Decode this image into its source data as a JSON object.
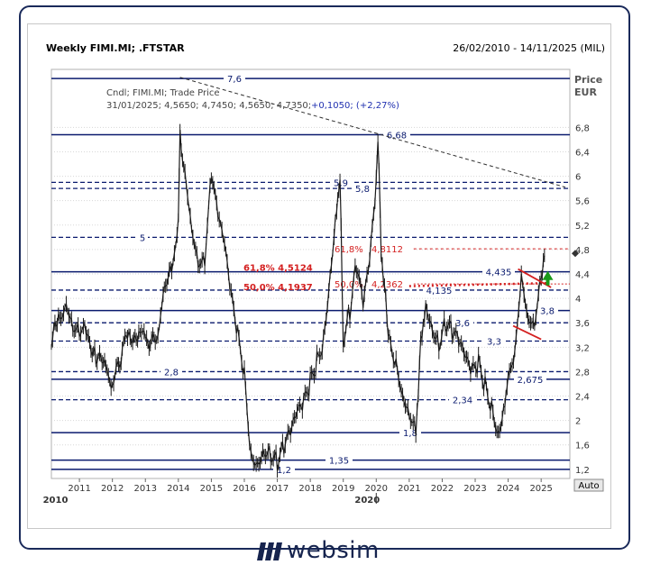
{
  "header": {
    "title": "Weekly FIMI.MI; .FTSTAR",
    "date_range": "26/02/2010 - 14/11/2025 (MIL)",
    "price_axis_label_1": "Price",
    "price_axis_label_2": "EUR",
    "auto_button": "Auto"
  },
  "info_box": {
    "line1": "Cndl; FIMI.MI; Trade Price",
    "line2_values": "31/01/2025; 4,5650; 4,7450; 4,5650; 4,7350;",
    "line2_change": "+0,1050; (+2,27%)"
  },
  "colors": {
    "price": "#1a1a1a",
    "support_line": "#0a1a6e",
    "fib_red": "#d42020",
    "trendline": "#303030",
    "up_arrow": "#1a9a1a",
    "brand": "#16244e"
  },
  "chart_data": {
    "type": "candlestick-line",
    "title": "Weekly FIMI.MI; .FTSTAR",
    "ylabel": "Price EUR",
    "ylim": [
      1.05,
      7.75
    ],
    "xlim": [
      2010.15,
      2025.87
    ],
    "y_ticks": [
      "1,2",
      "1,6",
      "2",
      "2,4",
      "2,8",
      "3,2",
      "3,6",
      "4",
      "4,4",
      "4,8",
      "5,2",
      "5,6",
      "6",
      "6,4",
      "6,8"
    ],
    "x_ticks": [
      "2011",
      "2012",
      "2013",
      "2014",
      "2015",
      "2016",
      "2017",
      "2018",
      "2019",
      "2020",
      "2021",
      "2022",
      "2023",
      "2024",
      "2025"
    ],
    "x_secondary": [
      "2010",
      "2020"
    ],
    "horizontal_levels": [
      {
        "value": 7.6,
        "label": "7,6",
        "style": "solid"
      },
      {
        "value": 6.68,
        "label": "6,68",
        "style": "solid"
      },
      {
        "value": 5.9,
        "label": "5,9",
        "style": "dashed"
      },
      {
        "value": 5.8,
        "label": "5,8",
        "style": "dashed"
      },
      {
        "value": 5.0,
        "label": "5",
        "style": "dashed"
      },
      {
        "value": 4.435,
        "label": "4,435",
        "style": "solid"
      },
      {
        "value": 4.135,
        "label": "4,135",
        "style": "dashed"
      },
      {
        "value": 3.8,
        "label": "3,8",
        "style": "solid"
      },
      {
        "value": 3.6,
        "label": "3,6",
        "style": "dashed"
      },
      {
        "value": 3.3,
        "label": "3,3",
        "style": "dashed"
      },
      {
        "value": 2.8,
        "label": "2,8",
        "style": "dashed"
      },
      {
        "value": 2.675,
        "label": "2,675",
        "style": "solid"
      },
      {
        "value": 2.34,
        "label": "2,34",
        "style": "dashed"
      },
      {
        "value": 1.8,
        "label": "1,8",
        "style": "solid"
      },
      {
        "value": 1.35,
        "label": "1,35",
        "style": "solid"
      },
      {
        "value": 1.2,
        "label": "1,2",
        "style": "solid"
      }
    ],
    "fibonacci": [
      {
        "label": "61,8% 4,5124",
        "value": 4.5124
      },
      {
        "label": "50,0% 4,1937",
        "value": 4.1937
      },
      {
        "label": "61,8%",
        "value_label": "4,8112",
        "value": 4.8112
      },
      {
        "label": "50,0%",
        "value_label": "4,2362",
        "value": 4.2362
      }
    ],
    "last_price": 4.735,
    "series": [
      {
        "x": [
          2010.15,
          2010.4,
          2010.6,
          2010.8,
          2011.0,
          2011.2,
          2011.5,
          2011.8,
          2012.0,
          2012.3,
          2012.5,
          2012.8,
          2013.0,
          2013.3,
          2013.5,
          2013.8,
          2014.0,
          2014.05,
          2014.2,
          2014.4,
          2014.6,
          2014.8,
          2015.0,
          2015.2,
          2015.4,
          2015.6,
          2015.8,
          2016.0,
          2016.2,
          2016.4,
          2016.6,
          2016.8,
          2017.0,
          2017.2,
          2017.4,
          2017.6,
          2017.8,
          2018.0,
          2018.2,
          2018.4,
          2018.6,
          2018.8,
          2018.9,
          2019.0,
          2019.2,
          2019.4,
          2019.6,
          2019.8,
          2020.0,
          2020.05,
          2020.15,
          2020.25,
          2020.4,
          2020.6,
          2020.8,
          2021.0,
          2021.2,
          2021.35,
          2021.5,
          2021.7,
          2021.9,
          2022.1,
          2022.3,
          2022.5,
          2022.7,
          2022.9,
          2023.1,
          2023.3,
          2023.5,
          2023.7,
          2023.9,
          2024.0,
          2024.2,
          2024.4,
          2024.6,
          2024.8,
          2025.0,
          2025.1
        ],
        "y": [
          3.4,
          3.7,
          4.0,
          3.6,
          3.5,
          3.5,
          3.1,
          2.8,
          2.5,
          3.1,
          3.3,
          3.5,
          3.4,
          3.3,
          4.0,
          4.4,
          5.3,
          6.6,
          6.1,
          5.2,
          4.6,
          4.6,
          6.0,
          5.3,
          4.8,
          4.0,
          3.4,
          2.8,
          1.5,
          1.4,
          1.6,
          1.5,
          1.3,
          1.5,
          1.7,
          2.0,
          2.2,
          2.6,
          3.0,
          3.4,
          4.5,
          5.6,
          5.9,
          3.4,
          3.8,
          4.5,
          3.8,
          4.5,
          5.8,
          6.6,
          4.8,
          4.2,
          3.3,
          3.0,
          2.5,
          2.2,
          1.9,
          3.2,
          4.0,
          3.6,
          3.3,
          3.6,
          3.4,
          3.2,
          2.9,
          2.7,
          2.9,
          2.6,
          2.3,
          1.9,
          2.4,
          2.7,
          3.1,
          4.4,
          3.7,
          3.6,
          4.4,
          4.7
        ],
        "name": ""
      }
    ]
  }
}
